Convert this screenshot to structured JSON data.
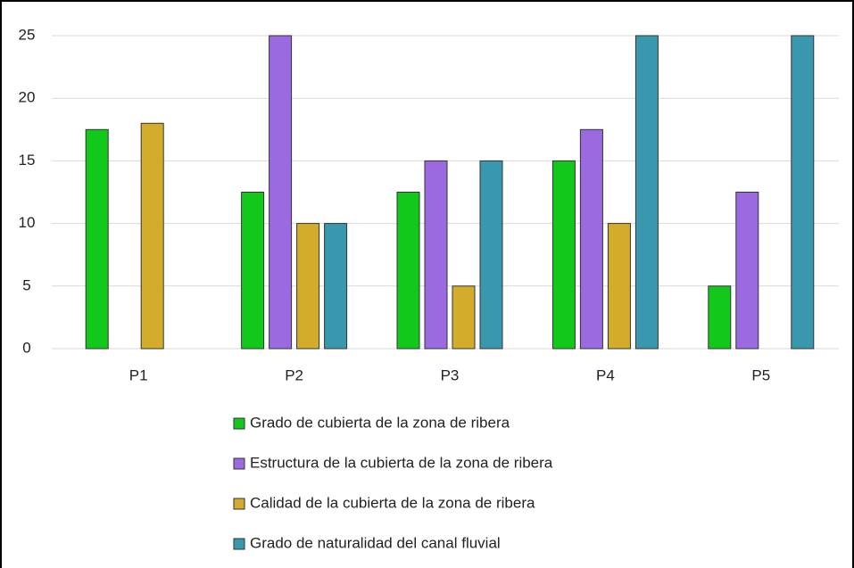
{
  "chart_data": {
    "type": "bar",
    "categories": [
      "P1",
      "P2",
      "P3",
      "P4",
      "P5"
    ],
    "series": [
      {
        "name": "Grado de cubierta de la zona de ribera",
        "color": "#12c81a",
        "values": [
          17.5,
          12.5,
          12.5,
          15,
          5
        ]
      },
      {
        "name": "Estructura de la cubierta de la zona de ribera",
        "color": "#9b69e0",
        "values": [
          0,
          25,
          15,
          17.5,
          12.5
        ]
      },
      {
        "name": "Calidad de la cubierta de la zona de ribera",
        "color": "#d4ac2c",
        "values": [
          18,
          10,
          5,
          10,
          0
        ]
      },
      {
        "name": "Grado de naturalidad del canal fluvial",
        "color": "#3a98ae",
        "values": [
          0,
          10,
          15,
          25,
          25
        ]
      }
    ],
    "ylim": [
      0,
      25
    ],
    "yticks": [
      0,
      5,
      10,
      15,
      20,
      25
    ],
    "grid": true,
    "legend": "bottom"
  }
}
